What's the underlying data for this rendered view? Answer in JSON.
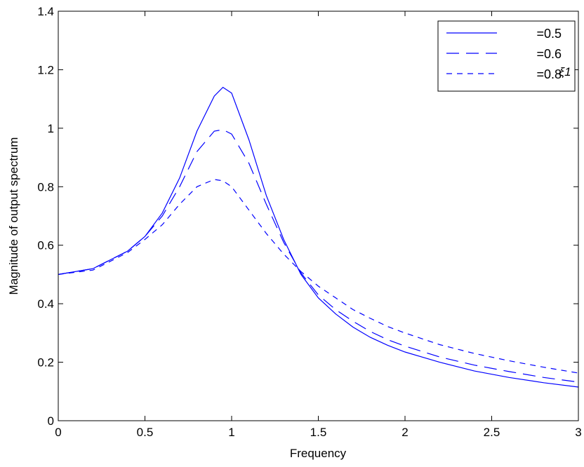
{
  "chart_data": {
    "type": "line",
    "title": "",
    "xlabel": "Frequency",
    "ylabel": "Magnitude of output spectrum",
    "xlim": [
      0,
      3
    ],
    "ylim": [
      0,
      1.4
    ],
    "xticks": [
      0,
      0.5,
      1,
      1.5,
      2,
      2.5,
      3
    ],
    "xtick_labels": [
      "0",
      "0.5",
      "1",
      "1.5",
      "2",
      "2.5",
      "3"
    ],
    "yticks": [
      0,
      0.2,
      0.4,
      0.6,
      0.8,
      1,
      1.2,
      1.4
    ],
    "ytick_labels": [
      "0",
      "0.2",
      "0.4",
      "0.6",
      "0.8",
      "1",
      "1.2",
      "1.4"
    ],
    "grid": false,
    "legend_position": "top-right",
    "legend_symbol": "ξ1",
    "line_color": "#0000ff",
    "x": [
      0,
      0.2,
      0.4,
      0.5,
      0.6,
      0.7,
      0.8,
      0.9,
      0.95,
      1.0,
      1.1,
      1.2,
      1.3,
      1.4,
      1.5,
      1.6,
      1.7,
      1.8,
      1.9,
      2.0,
      2.2,
      2.4,
      2.6,
      2.8,
      3.0
    ],
    "series": [
      {
        "name": "=0.5",
        "dash": "solid",
        "values": [
          0.5,
          0.52,
          0.58,
          0.63,
          0.71,
          0.83,
          0.99,
          1.11,
          1.14,
          1.12,
          0.96,
          0.77,
          0.62,
          0.5,
          0.42,
          0.365,
          0.32,
          0.285,
          0.258,
          0.235,
          0.2,
          0.17,
          0.148,
          0.13,
          0.115
        ]
      },
      {
        "name": "=0.6",
        "dash": "long-dash",
        "values": [
          0.5,
          0.52,
          0.58,
          0.63,
          0.7,
          0.8,
          0.92,
          0.99,
          0.995,
          0.98,
          0.88,
          0.74,
          0.61,
          0.505,
          0.43,
          0.38,
          0.34,
          0.305,
          0.277,
          0.255,
          0.218,
          0.19,
          0.168,
          0.148,
          0.132
        ]
      },
      {
        "name": "=0.8",
        "dash": "short-dash",
        "values": [
          0.5,
          0.515,
          0.575,
          0.62,
          0.67,
          0.74,
          0.8,
          0.825,
          0.82,
          0.8,
          0.72,
          0.64,
          0.57,
          0.51,
          0.46,
          0.42,
          0.38,
          0.35,
          0.322,
          0.3,
          0.26,
          0.23,
          0.205,
          0.183,
          0.163
        ]
      }
    ]
  }
}
